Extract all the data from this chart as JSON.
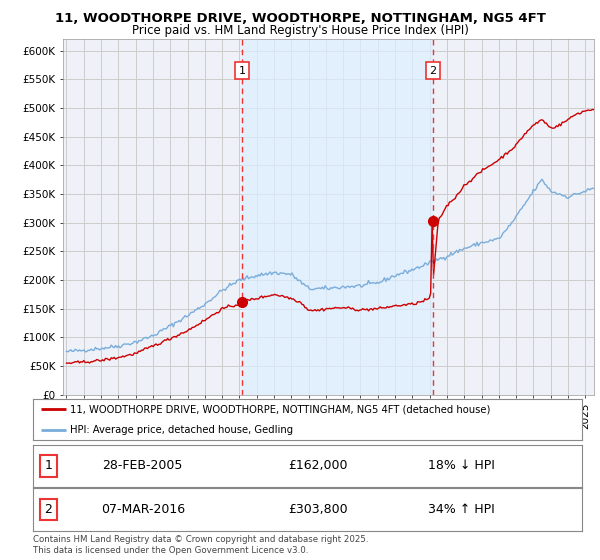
{
  "title": "11, WOODTHORPE DRIVE, WOODTHORPE, NOTTINGHAM, NG5 4FT",
  "subtitle": "Price paid vs. HM Land Registry's House Price Index (HPI)",
  "title_fontsize": 9.5,
  "subtitle_fontsize": 8.5,
  "background_color": "#ffffff",
  "plot_bg_color": "#eef2f8",
  "shaded_region_color": "#d0e0f0",
  "grid_color": "#cccccc",
  "line_color_red": "#cc0000",
  "line_color_blue": "#7aaddb",
  "vline_color": "#ee3333",
  "marker1_date": "28-FEB-2005",
  "marker1_price": 162000,
  "marker1_price_str": "£162,000",
  "marker1_hpi_diff": "18% ↓ HPI",
  "marker2_date": "07-MAR-2016",
  "marker2_price": 303800,
  "marker2_price_str": "£303,800",
  "marker2_hpi_diff": "34% ↑ HPI",
  "ylim": [
    0,
    620000
  ],
  "yticks": [
    0,
    50000,
    100000,
    150000,
    200000,
    250000,
    300000,
    350000,
    400000,
    450000,
    500000,
    550000,
    600000
  ],
  "ytick_labels": [
    "£0",
    "£50K",
    "£100K",
    "£150K",
    "£200K",
    "£250K",
    "£300K",
    "£350K",
    "£400K",
    "£450K",
    "£500K",
    "£550K",
    "£600K"
  ],
  "legend_label_red": "11, WOODTHORPE DRIVE, WOODTHORPE, NOTTINGHAM, NG5 4FT (detached house)",
  "legend_label_blue": "HPI: Average price, detached house, Gedling",
  "copyright": "Contains HM Land Registry data © Crown copyright and database right 2025.\nThis data is licensed under the Open Government Licence v3.0.",
  "vline1_x": 2005.15,
  "vline2_x": 2016.18,
  "marker1_x": 2005.15,
  "marker1_y": 162000,
  "marker2_x": 2016.18,
  "marker2_y": 303800,
  "xmin": 1994.8,
  "xmax": 2025.5
}
